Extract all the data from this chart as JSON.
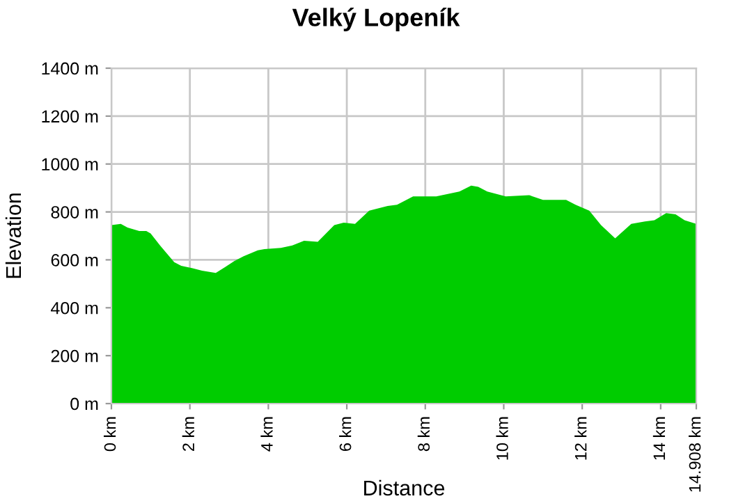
{
  "chart_data": {
    "type": "area",
    "title": "Velký Lopeník",
    "xlabel": "Distance",
    "ylabel": "Elevation",
    "xlim": [
      0,
      14.908
    ],
    "ylim": [
      0,
      1400
    ],
    "xticks": [
      {
        "value": 0,
        "label": "0 km"
      },
      {
        "value": 2,
        "label": "2 km"
      },
      {
        "value": 4,
        "label": "4 km"
      },
      {
        "value": 6,
        "label": "6 km"
      },
      {
        "value": 8,
        "label": "8 km"
      },
      {
        "value": 10,
        "label": "10 km"
      },
      {
        "value": 12,
        "label": "12 km"
      },
      {
        "value": 14,
        "label": "14 km"
      },
      {
        "value": 14.908,
        "label": "14.908 km"
      }
    ],
    "yticks": [
      {
        "value": 0,
        "label": "0 m"
      },
      {
        "value": 200,
        "label": "200 m"
      },
      {
        "value": 400,
        "label": "400 m"
      },
      {
        "value": 600,
        "label": "600 m"
      },
      {
        "value": 800,
        "label": "800 m"
      },
      {
        "value": 1000,
        "label": "1000 m"
      },
      {
        "value": 1200,
        "label": "1200 m"
      },
      {
        "value": 1400,
        "label": "1400 m"
      }
    ],
    "grid": true,
    "series": [
      {
        "color": "#00cc00",
        "x": [
          0,
          0.24,
          0.41,
          0.71,
          0.89,
          1.0,
          1.24,
          1.6,
          1.78,
          2.07,
          2.31,
          2.66,
          2.9,
          3.13,
          3.37,
          3.73,
          3.9,
          4.32,
          4.61,
          4.91,
          5.26,
          5.68,
          5.92,
          6.21,
          6.57,
          7.04,
          7.28,
          7.46,
          7.69,
          8.28,
          8.87,
          9.17,
          9.35,
          9.58,
          10.05,
          10.65,
          11.0,
          11.59,
          11.83,
          12.18,
          12.48,
          12.84,
          13.25,
          13.6,
          13.84,
          14.14,
          14.38,
          14.61,
          14.908
        ],
        "values": [
          745,
          750,
          735,
          720,
          720,
          710,
          660,
          590,
          575,
          565,
          555,
          545,
          570,
          595,
          615,
          640,
          645,
          650,
          660,
          680,
          675,
          745,
          755,
          750,
          805,
          825,
          830,
          845,
          865,
          865,
          885,
          910,
          905,
          885,
          865,
          870,
          850,
          850,
          830,
          805,
          745,
          690,
          750,
          760,
          765,
          795,
          790,
          765,
          750
        ]
      }
    ]
  }
}
